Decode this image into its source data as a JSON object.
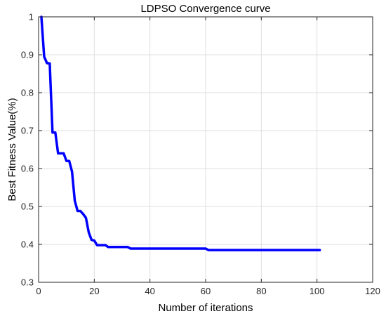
{
  "chart_data": {
    "type": "line",
    "title": "LDPSO Convergence curve",
    "xlabel": "Number of iterations",
    "ylabel": "Best Fitness Value(%)",
    "xlim": [
      0,
      120
    ],
    "ylim": [
      0.3,
      1
    ],
    "x_ticks": [
      "0",
      "20",
      "40",
      "60",
      "80",
      "100",
      "120"
    ],
    "y_ticks": [
      "0.3",
      "0.4",
      "0.5",
      "0.6",
      "0.7",
      "0.8",
      "0.9",
      "1"
    ],
    "grid": true,
    "box": true,
    "series": [
      {
        "color": "#0000ff",
        "x": [
          1,
          2,
          3,
          4,
          5,
          6,
          7,
          8,
          9,
          10,
          11,
          12,
          13,
          14,
          15,
          16,
          17,
          18,
          19,
          20,
          21,
          22,
          23,
          24,
          25,
          26,
          27,
          28,
          29,
          30,
          31,
          32,
          33,
          34,
          35,
          36,
          37,
          38,
          39,
          40,
          41,
          42,
          43,
          44,
          45,
          46,
          47,
          48,
          49,
          50,
          51,
          52,
          53,
          54,
          55,
          56,
          57,
          58,
          59,
          60,
          61,
          62,
          63,
          64,
          65,
          66,
          67,
          68,
          69,
          70,
          71,
          72,
          73,
          74,
          75,
          76,
          77,
          78,
          79,
          80,
          81,
          82,
          83,
          84,
          85,
          86,
          87,
          88,
          89,
          90,
          91,
          92,
          93,
          94,
          95,
          96,
          97,
          98,
          99,
          100,
          101
        ],
        "y": [
          1.0,
          0.895,
          0.878,
          0.877,
          0.695,
          0.695,
          0.64,
          0.64,
          0.64,
          0.62,
          0.62,
          0.592,
          0.515,
          0.488,
          0.488,
          0.48,
          0.47,
          0.432,
          0.412,
          0.41,
          0.398,
          0.398,
          0.398,
          0.398,
          0.393,
          0.393,
          0.393,
          0.393,
          0.393,
          0.393,
          0.393,
          0.393,
          0.389,
          0.389,
          0.389,
          0.389,
          0.389,
          0.389,
          0.389,
          0.389,
          0.389,
          0.389,
          0.389,
          0.389,
          0.389,
          0.389,
          0.389,
          0.389,
          0.389,
          0.389,
          0.389,
          0.389,
          0.389,
          0.389,
          0.389,
          0.389,
          0.389,
          0.389,
          0.389,
          0.389,
          0.385,
          0.385,
          0.385,
          0.385,
          0.385,
          0.385,
          0.385,
          0.385,
          0.385,
          0.385,
          0.385,
          0.385,
          0.385,
          0.385,
          0.385,
          0.385,
          0.385,
          0.385,
          0.385,
          0.385,
          0.385,
          0.385,
          0.385,
          0.385,
          0.385,
          0.385,
          0.385,
          0.385,
          0.385,
          0.385,
          0.385,
          0.385,
          0.385,
          0.385,
          0.385,
          0.385,
          0.385,
          0.385,
          0.385,
          0.385,
          0.385
        ]
      }
    ]
  }
}
